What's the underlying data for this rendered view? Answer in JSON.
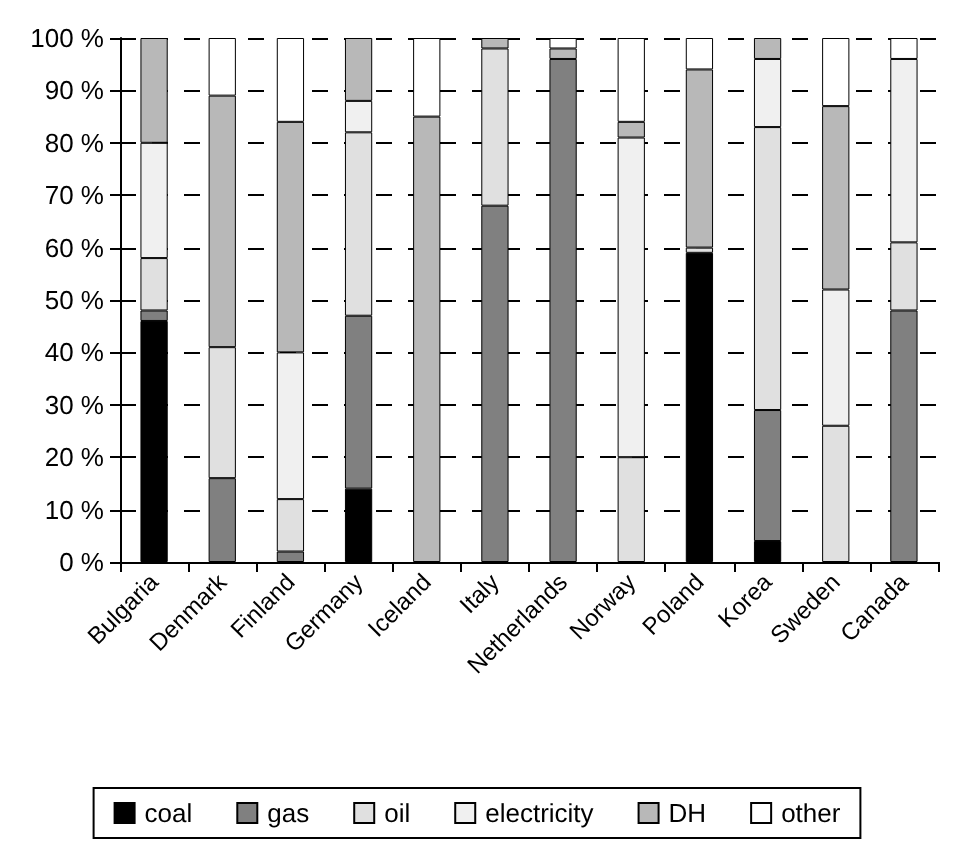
{
  "chart_data": {
    "type": "bar",
    "stacked": true,
    "categories": [
      "Bulgaria",
      "Denmark",
      "Finland",
      "Germany",
      "Iceland",
      "Italy",
      "Netherlands",
      "Norway",
      "Poland",
      "Korea",
      "Sweden",
      "Canada"
    ],
    "series": [
      {
        "name": "coal",
        "color": "#000000",
        "values": [
          46,
          0,
          0,
          14,
          0,
          0,
          0,
          0,
          59,
          4,
          0,
          0
        ]
      },
      {
        "name": "gas",
        "color": "#808080",
        "values": [
          2,
          16,
          2,
          33,
          0,
          68,
          96,
          0,
          0,
          25,
          0,
          48
        ]
      },
      {
        "name": "oil",
        "color": "#e0e0e0",
        "values": [
          10,
          25,
          10,
          35,
          0,
          30,
          0,
          20,
          1,
          54,
          26,
          13
        ]
      },
      {
        "name": "electricity",
        "color": "#f0f0f0",
        "values": [
          22,
          0,
          28,
          6,
          0,
          0,
          0,
          61,
          0,
          13,
          26,
          35
        ]
      },
      {
        "name": "DH",
        "color": "#b8b8b8",
        "values": [
          20,
          48,
          44,
          12,
          85,
          2,
          2,
          3,
          34,
          4,
          35,
          0
        ]
      },
      {
        "name": "other",
        "color": "#ffffff",
        "values": [
          0,
          11,
          16,
          0,
          15,
          0,
          2,
          16,
          6,
          0,
          13,
          4
        ]
      }
    ],
    "ylim": [
      0,
      100
    ],
    "yticks": [
      {
        "value": 0,
        "label": "0 %"
      },
      {
        "value": 10,
        "label": "10 %"
      },
      {
        "value": 20,
        "label": "20 %"
      },
      {
        "value": 30,
        "label": "30 %"
      },
      {
        "value": 40,
        "label": "40 %"
      },
      {
        "value": 50,
        "label": "50 %"
      },
      {
        "value": 60,
        "label": "60 %"
      },
      {
        "value": 70,
        "label": "70 %"
      },
      {
        "value": 80,
        "label": "80 %"
      },
      {
        "value": 90,
        "label": "90 %"
      },
      {
        "value": 100,
        "label": "100 %"
      }
    ],
    "grid": "y",
    "legend": "bottom"
  }
}
